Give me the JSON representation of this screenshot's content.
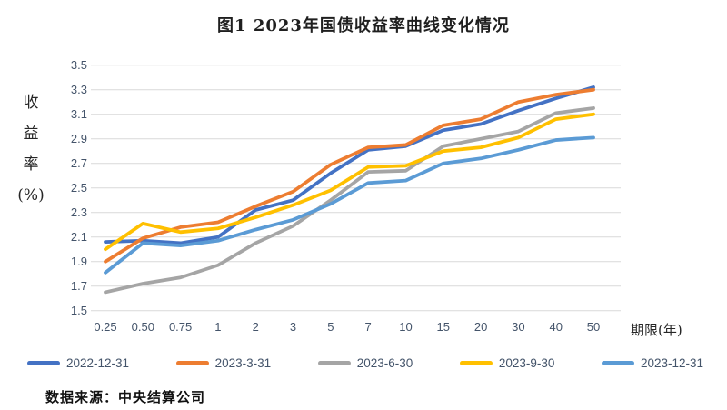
{
  "title": "图1 2023年国债收益率曲线变化情况",
  "source_note": "数据来源：中央结算公司",
  "y_axis": {
    "label_lines": [
      "收",
      "益",
      "率",
      "(%)"
    ],
    "ticks": [
      "3.5",
      "3.3",
      "3.1",
      "2.9",
      "2.7",
      "2.5",
      "2.3",
      "2.1",
      "1.9",
      "1.7",
      "1.5"
    ]
  },
  "x_axis": {
    "labels": [
      "0.25",
      "0.50",
      "0.75",
      "1",
      "2",
      "3",
      "5",
      "7",
      "10",
      "15",
      "20",
      "30",
      "40",
      "50"
    ],
    "title": "期限(年)"
  },
  "colors": {
    "grid": "#D9D9D9",
    "axis_text": "#44546A",
    "series_2022_12_31": "#4472C4",
    "series_2023_3_31": "#ED7D31",
    "series_2023_6_30": "#A5A5A5",
    "series_2023_9_30": "#FFC000",
    "series_2023_12_31": "#5B9BD5"
  },
  "legend": [
    {
      "label": "2022-12-31",
      "color": "#4472C4"
    },
    {
      "label": "2023-3-31",
      "color": "#ED7D31"
    },
    {
      "label": "2023-6-30",
      "color": "#A5A5A5"
    },
    {
      "label": "2023-9-30",
      "color": "#FFC000"
    },
    {
      "label": "2023-12-31",
      "color": "#5B9BD5"
    }
  ],
  "chart_data": {
    "type": "line",
    "title": "图1 2023年国债收益率曲线变化情况",
    "xlabel": "期限(年)",
    "ylabel": "收益率(%)",
    "ylim": [
      1.5,
      3.5
    ],
    "ytick_step": 0.2,
    "grid": true,
    "legend_position": "bottom",
    "categories": [
      0.25,
      0.5,
      0.75,
      1,
      2,
      3,
      5,
      7,
      10,
      15,
      20,
      30,
      40,
      50
    ],
    "series": [
      {
        "name": "2022-12-31",
        "color": "#4472C4",
        "values": [
          2.06,
          2.07,
          2.05,
          2.1,
          2.32,
          2.4,
          2.62,
          2.81,
          2.84,
          2.97,
          3.02,
          3.13,
          3.23,
          3.32
        ]
      },
      {
        "name": "2023-3-31",
        "color": "#ED7D31",
        "values": [
          1.9,
          2.09,
          2.18,
          2.22,
          2.35,
          2.47,
          2.69,
          2.83,
          2.85,
          3.01,
          3.06,
          3.2,
          3.26,
          3.3
        ]
      },
      {
        "name": "2023-6-30",
        "color": "#A5A5A5",
        "values": [
          1.65,
          1.72,
          1.77,
          1.87,
          2.05,
          2.19,
          2.4,
          2.63,
          2.64,
          2.84,
          2.9,
          2.96,
          3.11,
          3.15
        ]
      },
      {
        "name": "2023-9-30",
        "color": "#FFC000",
        "values": [
          2.0,
          2.21,
          2.14,
          2.17,
          2.26,
          2.36,
          2.48,
          2.67,
          2.68,
          2.8,
          2.83,
          2.91,
          3.06,
          3.1
        ]
      },
      {
        "name": "2023-12-31",
        "color": "#5B9BD5",
        "values": [
          1.81,
          2.05,
          2.03,
          2.07,
          2.16,
          2.24,
          2.37,
          2.54,
          2.56,
          2.7,
          2.74,
          2.81,
          2.89,
          2.91
        ]
      }
    ]
  }
}
